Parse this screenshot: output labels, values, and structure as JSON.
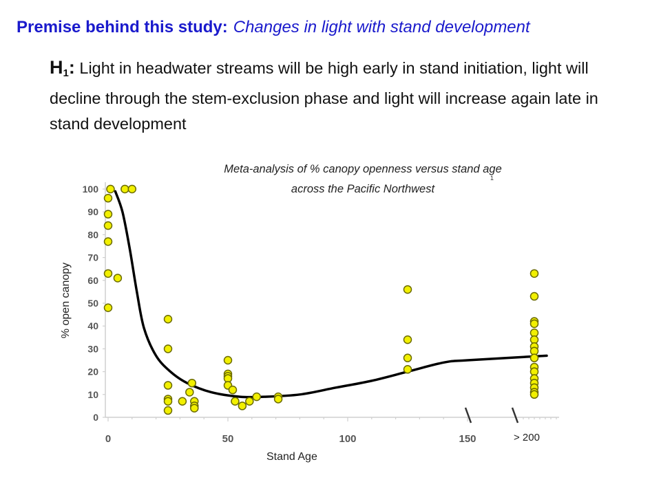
{
  "premise": {
    "lead": "Premise behind this study:",
    "rest": "Changes in light with stand development"
  },
  "hypothesis": {
    "label": "H",
    "subscript": "1",
    "colon": ":",
    "text": " Light in headwater streams will be high early in stand initiation, light will decline through the stem-exclusion phase and light will increase again late in stand development"
  },
  "caption": {
    "line1": "Meta-analysis of % canopy openness versus stand age",
    "line2": "across the Pacific Northwest",
    "footnote": "1"
  },
  "colors": {
    "premise": "#1a1acc",
    "point_fill": "#f2f000",
    "point_stroke": "#6b6b00",
    "curve": "#000000",
    "axis": "#cfcfcf"
  },
  "chart_data": {
    "type": "scatter",
    "xlabel": "Stand Age",
    "ylabel": "% open canopy",
    "x_ticks": [
      "0",
      "50",
      "100",
      "150"
    ],
    "x_extra_tick": "> 200",
    "y_ticks": [
      "0",
      "10",
      "20",
      "30",
      "40",
      "50",
      "60",
      "70",
      "80",
      "90",
      "100"
    ],
    "xlim": [
      0,
      150
    ],
    "ylim": [
      0,
      100
    ],
    "grid": false,
    "points": [
      {
        "x": 1,
        "y": 100
      },
      {
        "x": 0,
        "y": 96
      },
      {
        "x": 0,
        "y": 89
      },
      {
        "x": 0,
        "y": 84
      },
      {
        "x": 0,
        "y": 77
      },
      {
        "x": 0,
        "y": 63
      },
      {
        "x": 0,
        "y": 48
      },
      {
        "x": 4,
        "y": 61
      },
      {
        "x": 7,
        "y": 100
      },
      {
        "x": 10,
        "y": 100
      },
      {
        "x": 25,
        "y": 43
      },
      {
        "x": 25,
        "y": 30
      },
      {
        "x": 25,
        "y": 14
      },
      {
        "x": 25,
        "y": 8
      },
      {
        "x": 25,
        "y": 7
      },
      {
        "x": 25,
        "y": 3
      },
      {
        "x": 31,
        "y": 7
      },
      {
        "x": 34,
        "y": 11
      },
      {
        "x": 35,
        "y": 15
      },
      {
        "x": 36,
        "y": 7
      },
      {
        "x": 36,
        "y": 5
      },
      {
        "x": 36,
        "y": 4
      },
      {
        "x": 50,
        "y": 25
      },
      {
        "x": 50,
        "y": 19
      },
      {
        "x": 50,
        "y": 18
      },
      {
        "x": 50,
        "y": 17
      },
      {
        "x": 50,
        "y": 14
      },
      {
        "x": 52,
        "y": 12
      },
      {
        "x": 53,
        "y": 7
      },
      {
        "x": 56,
        "y": 5
      },
      {
        "x": 59,
        "y": 7
      },
      {
        "x": 62,
        "y": 9
      },
      {
        "x": 71,
        "y": 9
      },
      {
        "x": 71,
        "y": 8
      },
      {
        "x": 125,
        "y": 56
      },
      {
        "x": 125,
        "y": 34
      },
      {
        "x": 125,
        "y": 26
      },
      {
        "x": 125,
        "y": 21
      },
      {
        "x": ">200",
        "y": 63
      },
      {
        "x": ">200",
        "y": 53
      },
      {
        "x": ">200",
        "y": 42
      },
      {
        "x": ">200",
        "y": 41
      },
      {
        "x": ">200",
        "y": 37
      },
      {
        "x": ">200",
        "y": 34
      },
      {
        "x": ">200",
        "y": 31
      },
      {
        "x": ">200",
        "y": 29
      },
      {
        "x": ">200",
        "y": 26
      },
      {
        "x": ">200",
        "y": 22
      },
      {
        "x": ">200",
        "y": 20
      },
      {
        "x": ">200",
        "y": 17
      },
      {
        "x": ">200",
        "y": 15
      },
      {
        "x": ">200",
        "y": 13
      },
      {
        "x": ">200",
        "y": 11
      },
      {
        "x": ">200",
        "y": 10
      }
    ],
    "trend_curve": [
      {
        "x": 3,
        "y": 99
      },
      {
        "x": 6,
        "y": 90
      },
      {
        "x": 9,
        "y": 74
      },
      {
        "x": 12,
        "y": 55
      },
      {
        "x": 15,
        "y": 39
      },
      {
        "x": 20,
        "y": 27
      },
      {
        "x": 26,
        "y": 20
      },
      {
        "x": 33,
        "y": 15
      },
      {
        "x": 43,
        "y": 11
      },
      {
        "x": 55,
        "y": 9
      },
      {
        "x": 65,
        "y": 9
      },
      {
        "x": 80,
        "y": 10
      },
      {
        "x": 95,
        "y": 13
      },
      {
        "x": 110,
        "y": 16
      },
      {
        "x": 125,
        "y": 20
      },
      {
        "x": 140,
        "y": 24
      },
      {
        "x": 150,
        "y": 25
      },
      {
        "x": ">200",
        "y": 27
      }
    ]
  }
}
